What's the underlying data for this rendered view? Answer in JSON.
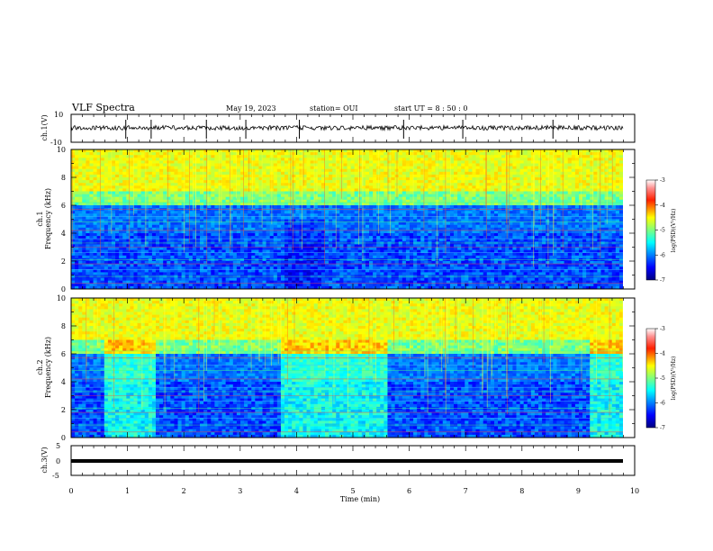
{
  "header": {
    "title": "VLF Spectra",
    "date": "May 19, 2023",
    "station": "station= OUI",
    "start": "start  UT  =   8  : 50 : 0"
  },
  "colors": {
    "colormap": [
      "#00007f",
      "#0000ff",
      "#007fff",
      "#00ffff",
      "#7fff7f",
      "#ffff00",
      "#ff7f00",
      "#ff0000",
      "#ffffff"
    ]
  },
  "chart_data": [
    {
      "type": "line",
      "ylabel": "ch.1(V)",
      "ylim": [
        -10,
        10
      ],
      "ticks_y": [
        "10",
        "-10"
      ],
      "description": "waveform fluctuating around about 0 V with occasional spikes"
    },
    {
      "type": "heatmap",
      "ylabel": "ch.1\nFrequency (kHz)",
      "ylim": [
        0,
        10
      ],
      "xlim": [
        0,
        9.8
      ],
      "ticks_y": [
        "0",
        "2",
        "4",
        "6",
        "8",
        "10"
      ],
      "colorbar": {
        "label": "log(PSD)(V²/Hz)",
        "ticks": [
          "-3",
          "-4",
          "-5",
          "-6",
          "-7"
        ],
        "range": [
          -7,
          -3
        ]
      }
    },
    {
      "type": "heatmap",
      "ylabel": "ch.2\nFrequency (kHz)",
      "ylim": [
        0,
        10
      ],
      "xlim": [
        0,
        9.8
      ],
      "ticks_y": [
        "0",
        "2",
        "4",
        "6",
        "8",
        "10"
      ],
      "colorbar": {
        "label": "log(PSD)(V²/Hz)",
        "ticks": [
          "-3",
          "-4",
          "-5",
          "-6",
          "-7"
        ],
        "range": [
          -7,
          -3
        ]
      }
    },
    {
      "type": "line",
      "ylabel": "ch.3(V)",
      "ylim": [
        -5,
        5
      ],
      "ticks_y": [
        "5",
        "0",
        "-5"
      ],
      "description": "flat line near 0 V"
    }
  ],
  "xaxis": {
    "label": "Time  (min)",
    "range": [
      0,
      10
    ],
    "ticks": [
      "0",
      "1",
      "2",
      "3",
      "4",
      "5",
      "6",
      "7",
      "8",
      "9",
      "10"
    ]
  }
}
